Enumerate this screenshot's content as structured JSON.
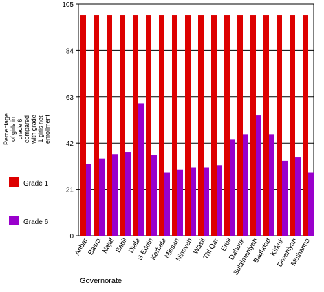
{
  "chart_data": {
    "type": "bar",
    "title": "",
    "ylabel_lines": [
      "Percentage",
      "of girls in",
      "grade 6",
      "compared",
      "with grade",
      "1 girls net",
      "enrollment"
    ],
    "xlabel": "Governorate",
    "ylim": [
      0,
      105
    ],
    "yticks": [
      0,
      21,
      42,
      63,
      84,
      105
    ],
    "grid": true,
    "legend_position": "left",
    "categories": [
      "Anbar",
      "Basra",
      "Najaf",
      "Babil",
      "Diala",
      "S Eddin",
      "Kerbala",
      "Missan",
      "Nineveh",
      "Wasit",
      "Thi Qar",
      "Erbil",
      "Dahouk",
      "Sulaimaniyah",
      "Baghdad",
      "Kirkuk",
      "Diwaniyah",
      "Muthanna"
    ],
    "series": [
      {
        "name": "Grade 1",
        "color": "#dd0000",
        "values": [
          100,
          100,
          100,
          100,
          100,
          100,
          100,
          100,
          100,
          100,
          100,
          100,
          100,
          100,
          100,
          100,
          100,
          100
        ]
      },
      {
        "name": "Grade 6",
        "color": "#9900cc",
        "values": [
          32.5,
          35,
          37,
          38,
          60,
          36.5,
          28.5,
          30,
          31,
          31,
          32,
          43.5,
          46,
          54.5,
          46,
          34,
          35.5,
          28.5
        ]
      }
    ]
  }
}
